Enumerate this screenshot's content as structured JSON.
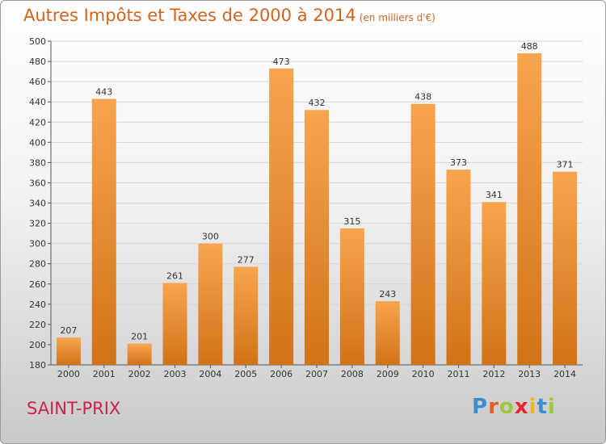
{
  "title": {
    "main": "Autres Impôts et Taxes de 2000 à 2014",
    "sub": "(en milliers d'€)"
  },
  "commune": "SAINT-PRIX",
  "logo": {
    "text": "Proxiti",
    "letters": [
      {
        "ch": "P",
        "color": "#3a8fd0"
      },
      {
        "ch": "r",
        "color": "#e85c22"
      },
      {
        "ch": "o",
        "color": "#9bc83c"
      },
      {
        "ch": "x",
        "color": "#e8262a"
      },
      {
        "ch": "i",
        "color": "#f2b21b"
      },
      {
        "ch": "t",
        "color": "#3a8fd0"
      },
      {
        "ch": "i",
        "color": "#9bc83c"
      }
    ]
  },
  "colors": {
    "bar_light": "#f8a54e",
    "bar_dark": "#d27217",
    "title": "#d2641e",
    "commune": "#c6254c",
    "grid": "#d6d6d6"
  },
  "chart_data": {
    "type": "bar",
    "title": "Autres Impôts et Taxes de 2000 à 2014",
    "subtitle": "(en milliers d'€)",
    "categories": [
      "2000",
      "2001",
      "2002",
      "2003",
      "2004",
      "2005",
      "2006",
      "2007",
      "2008",
      "2009",
      "2010",
      "2011",
      "2012",
      "2013",
      "2014"
    ],
    "values": [
      207,
      443,
      201,
      261,
      300,
      277,
      473,
      432,
      315,
      243,
      438,
      373,
      341,
      488,
      371
    ],
    "ylim": [
      180,
      500
    ],
    "yticks": [
      180,
      200,
      220,
      240,
      260,
      280,
      300,
      320,
      340,
      360,
      380,
      400,
      420,
      440,
      460,
      480,
      500
    ],
    "grid": true,
    "data_labels": true
  }
}
